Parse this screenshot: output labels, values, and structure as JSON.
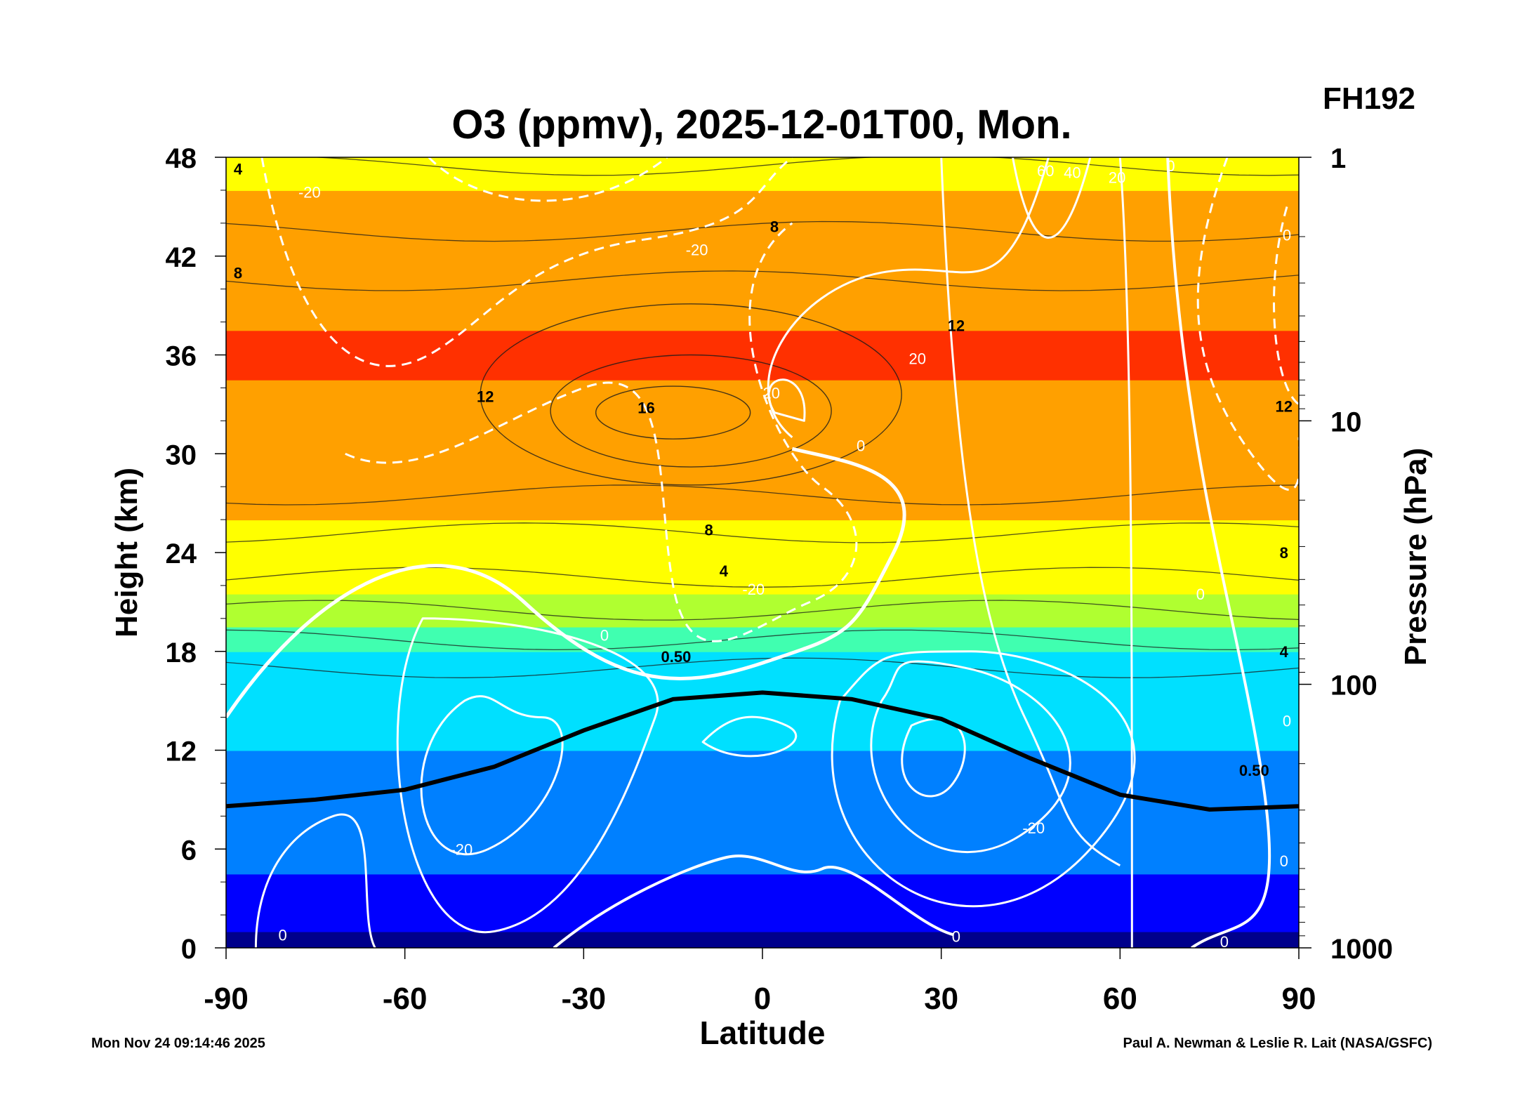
{
  "chart_data": {
    "type": "heatmap",
    "title": "O3 (ppmv), 2025-12-01T00, Mon.",
    "forecast_label": "FH192",
    "xlabel": "Latitude",
    "ylabel": "Height (km)",
    "y2label": "Pressure (hPa)",
    "xlim": [
      -90,
      90
    ],
    "ylim": [
      0,
      48
    ],
    "x_ticks": [
      -90,
      -60,
      -30,
      0,
      30,
      60,
      90
    ],
    "y_ticks": [
      0,
      6,
      12,
      18,
      24,
      30,
      36,
      42,
      48
    ],
    "pressure_ticks": [
      {
        "label": "1",
        "height_km": 48
      },
      {
        "label": "10",
        "height_km": 32
      },
      {
        "label": "100",
        "height_km": 16
      },
      {
        "label": "1000",
        "height_km": 0
      }
    ],
    "field_colorscale": [
      "#00008b",
      "#0000ff",
      "#0080ff",
      "#00e0ff",
      "#40ffb0",
      "#b0ff30",
      "#ffff00",
      "#ffa000",
      "#ff3000"
    ],
    "ozone_field": {
      "peak": {
        "lat": -12,
        "height_km": 32.5,
        "value": 16
      },
      "profile": [
        {
          "height_km": 0,
          "value": 0.05
        },
        {
          "height_km": 12,
          "value": 0.3
        },
        {
          "height_km": 18,
          "value": 0.5
        },
        {
          "height_km": 24,
          "value": 4
        },
        {
          "height_km": 30,
          "value": 8
        },
        {
          "height_km": 36,
          "value": 12
        },
        {
          "height_km": 42,
          "value": 8
        },
        {
          "height_km": 48,
          "value": 4
        }
      ]
    },
    "contour_labels": [
      {
        "text": "4",
        "lat": -88,
        "height_km": 47.2,
        "kind": "ozone"
      },
      {
        "text": "8",
        "lat": -88,
        "height_km": 40.9,
        "kind": "ozone"
      },
      {
        "text": "8",
        "lat": 2,
        "height_km": 43.7,
        "kind": "ozone"
      },
      {
        "text": "12",
        "lat": -46.5,
        "height_km": 33.4,
        "kind": "ozone"
      },
      {
        "text": "12",
        "lat": 32.5,
        "height_km": 37.7,
        "kind": "ozone"
      },
      {
        "text": "12",
        "lat": 87.5,
        "height_km": 32.8,
        "kind": "ozone"
      },
      {
        "text": "16",
        "lat": -19.5,
        "height_km": 32.7,
        "kind": "ozone"
      },
      {
        "text": "8",
        "lat": -9,
        "height_km": 25.3,
        "kind": "ozone"
      },
      {
        "text": "8",
        "lat": 87.5,
        "height_km": 23.9,
        "kind": "ozone"
      },
      {
        "text": "4",
        "lat": -6.5,
        "height_km": 22.8,
        "kind": "ozone"
      },
      {
        "text": "4",
        "lat": 87.5,
        "height_km": 17.9,
        "kind": "ozone"
      },
      {
        "text": "0.50",
        "lat": -14.5,
        "height_km": 17.6,
        "kind": "ozone"
      },
      {
        "text": "0.50",
        "lat": 82.5,
        "height_km": 10.7,
        "kind": "ozone"
      },
      {
        "text": "-20",
        "lat": -76,
        "height_km": 45.8,
        "kind": "wind"
      },
      {
        "text": "-20",
        "lat": -11,
        "height_km": 42.3,
        "kind": "wind"
      },
      {
        "text": "-20",
        "lat": -1.5,
        "height_km": 21.7,
        "kind": "wind"
      },
      {
        "text": "20",
        "lat": 26,
        "height_km": 35.7,
        "kind": "wind"
      },
      {
        "text": "20",
        "lat": 1.5,
        "height_km": 33.6,
        "kind": "wind"
      },
      {
        "text": "60",
        "lat": 47.5,
        "height_km": 47.1,
        "kind": "wind"
      },
      {
        "text": "40",
        "lat": 52,
        "height_km": 47.0,
        "kind": "wind"
      },
      {
        "text": "20",
        "lat": 59.5,
        "height_km": 46.7,
        "kind": "wind"
      },
      {
        "text": "0",
        "lat": 68.5,
        "height_km": 47.4,
        "kind": "wind"
      },
      {
        "text": "0",
        "lat": 88,
        "height_km": 43.2,
        "kind": "wind"
      },
      {
        "text": "0",
        "lat": 16.5,
        "height_km": 30.4,
        "kind": "wind"
      },
      {
        "text": "0",
        "lat": -26.5,
        "height_km": 18.9,
        "kind": "wind"
      },
      {
        "text": "0",
        "lat": 73.5,
        "height_km": 21.4,
        "kind": "wind"
      },
      {
        "text": "0",
        "lat": 88,
        "height_km": 13.7,
        "kind": "wind"
      },
      {
        "text": "0",
        "lat": 87.5,
        "height_km": 5.2,
        "kind": "wind"
      },
      {
        "text": "0",
        "lat": 32.5,
        "height_km": 0.6,
        "kind": "wind"
      },
      {
        "text": "0",
        "lat": -80.5,
        "height_km": 0.7,
        "kind": "wind"
      },
      {
        "text": "-20",
        "lat": -50.5,
        "height_km": 5.9,
        "kind": "wind"
      },
      {
        "text": "-20",
        "lat": 45.5,
        "height_km": 7.2,
        "kind": "wind"
      },
      {
        "text": "0",
        "lat": 77.5,
        "height_km": 0.3,
        "kind": "wind"
      }
    ],
    "tropopause_km": [
      {
        "lat": -90,
        "height_km": 8.6
      },
      {
        "lat": -75,
        "height_km": 9.0
      },
      {
        "lat": -60,
        "height_km": 9.6
      },
      {
        "lat": -45,
        "height_km": 11.0
      },
      {
        "lat": -30,
        "height_km": 13.2
      },
      {
        "lat": -15,
        "height_km": 15.1
      },
      {
        "lat": 0,
        "height_km": 15.5
      },
      {
        "lat": 15,
        "height_km": 15.1
      },
      {
        "lat": 30,
        "height_km": 13.9
      },
      {
        "lat": 45,
        "height_km": 11.5
      },
      {
        "lat": 60,
        "height_km": 9.3
      },
      {
        "lat": 75,
        "height_km": 8.4
      },
      {
        "lat": 90,
        "height_km": 8.6
      }
    ]
  },
  "footer": {
    "timestamp": "Mon Nov 24 09:14:46 2025",
    "credit": "Paul A. Newman & Leslie R. Lait (NASA/GSFC)"
  }
}
